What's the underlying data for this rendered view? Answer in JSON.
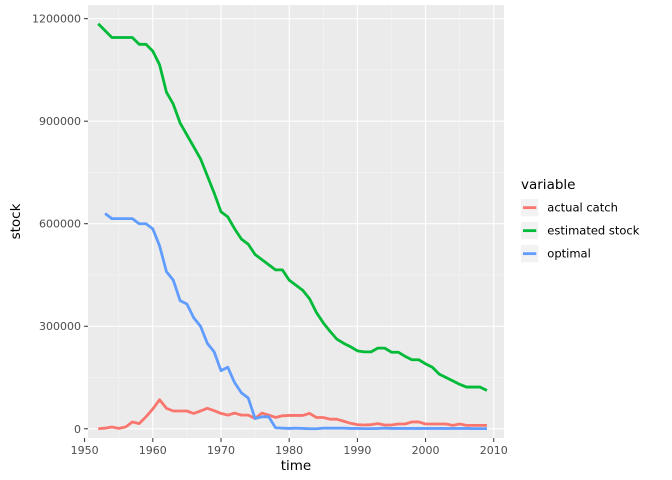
{
  "chart_data": {
    "type": "line",
    "xlabel": "time",
    "ylabel": "stock",
    "xlim": [
      1950.5,
      2011.5
    ],
    "ylim": [
      -27000,
      1240000
    ],
    "x_ticks": [
      1950,
      1960,
      1970,
      1980,
      1990,
      2000,
      2010
    ],
    "x_tick_labels": [
      "1950",
      "1960",
      "1970",
      "1980",
      "1990",
      "2000",
      "2010"
    ],
    "y_ticks": [
      0,
      300000,
      600000,
      900000,
      1200000
    ],
    "y_tick_labels": [
      "0",
      "300000",
      "600000",
      "900000",
      "1200000"
    ],
    "grid": true,
    "legend": {
      "title": "variable",
      "position": "right"
    },
    "series": [
      {
        "name": "actual catch",
        "color": "#F8766D",
        "x": [
          1952,
          1953,
          1954,
          1955,
          1956,
          1957,
          1958,
          1959,
          1960,
          1961,
          1962,
          1963,
          1964,
          1965,
          1966,
          1967,
          1968,
          1969,
          1970,
          1971,
          1972,
          1973,
          1974,
          1975,
          1976,
          1977,
          1978,
          1979,
          1980,
          1981,
          1982,
          1983,
          1984,
          1985,
          1986,
          1987,
          1988,
          1989,
          1990,
          1991,
          1992,
          1993,
          1994,
          1995,
          1996,
          1997,
          1998,
          1999,
          2000,
          2001,
          2002,
          2003,
          2004,
          2005,
          2006,
          2007,
          2008,
          2009
        ],
        "values": [
          0,
          2000,
          5000,
          1000,
          5000,
          20000,
          15000,
          35000,
          58000,
          85000,
          60000,
          52000,
          52000,
          52000,
          45000,
          52000,
          60000,
          53000,
          45000,
          40000,
          46000,
          40000,
          40000,
          30000,
          46000,
          40000,
          33000,
          38000,
          39000,
          39000,
          39000,
          45000,
          33000,
          33000,
          28000,
          28000,
          22000,
          16000,
          12000,
          11000,
          12000,
          15000,
          11000,
          11000,
          14000,
          14000,
          20000,
          20000,
          14000,
          14000,
          14000,
          14000,
          10000,
          14000,
          10000,
          10000,
          10000,
          10000
        ]
      },
      {
        "name": "estimated stock",
        "color": "#00BA38",
        "x": [
          1952,
          1953,
          1954,
          1955,
          1956,
          1957,
          1958,
          1959,
          1960,
          1961,
          1962,
          1963,
          1964,
          1965,
          1966,
          1967,
          1968,
          1969,
          1970,
          1971,
          1972,
          1973,
          1974,
          1975,
          1976,
          1977,
          1978,
          1979,
          1980,
          1981,
          1982,
          1983,
          1984,
          1985,
          1986,
          1987,
          1988,
          1989,
          1990,
          1991,
          1992,
          1993,
          1994,
          1995,
          1996,
          1997,
          1998,
          1999,
          2000,
          2001,
          2002,
          2003,
          2004,
          2005,
          2006,
          2007,
          2008,
          2009
        ],
        "values": [
          1185000,
          1165000,
          1145000,
          1145000,
          1145000,
          1145000,
          1125000,
          1125000,
          1105000,
          1065000,
          985000,
          950000,
          895000,
          860000,
          825000,
          790000,
          740000,
          690000,
          635000,
          620000,
          585000,
          555000,
          540000,
          510000,
          495000,
          480000,
          465000,
          465000,
          435000,
          420000,
          405000,
          380000,
          340000,
          310000,
          285000,
          262000,
          250000,
          240000,
          228000,
          225000,
          225000,
          236000,
          236000,
          224000,
          224000,
          212000,
          202000,
          202000,
          190000,
          180000,
          160000,
          150000,
          140000,
          130000,
          122000,
          122000,
          122000,
          112000
        ]
      },
      {
        "name": "optimal",
        "color": "#619CFF",
        "x": [
          1953,
          1954,
          1955,
          1956,
          1957,
          1958,
          1959,
          1960,
          1961,
          1962,
          1963,
          1964,
          1965,
          1966,
          1967,
          1968,
          1969,
          1970,
          1971,
          1972,
          1973,
          1974,
          1975,
          1976,
          1977,
          1978,
          1979,
          1980,
          1981,
          1982,
          1983,
          1984,
          1985,
          1986,
          1987,
          1988,
          1989,
          1990,
          1991,
          1992,
          1993,
          1994,
          1995,
          1996,
          1997,
          1998,
          1999,
          2000,
          2001,
          2002,
          2003,
          2004,
          2005,
          2006,
          2007,
          2008,
          2009
        ],
        "values": [
          630000,
          615000,
          615000,
          615000,
          615000,
          600000,
          600000,
          585000,
          535000,
          460000,
          435000,
          375000,
          365000,
          325000,
          300000,
          250000,
          225000,
          170000,
          180000,
          135000,
          105000,
          90000,
          30000,
          35000,
          35000,
          3000,
          2000,
          1000,
          2000,
          1000,
          0,
          0,
          2000,
          2000,
          2000,
          2000,
          1000,
          1000,
          500,
          500,
          1000,
          2000,
          1000,
          1000,
          1000,
          1000,
          1000,
          1000,
          1000,
          1000,
          1000,
          1000,
          1000,
          1000,
          500,
          500,
          500
        ]
      }
    ]
  }
}
